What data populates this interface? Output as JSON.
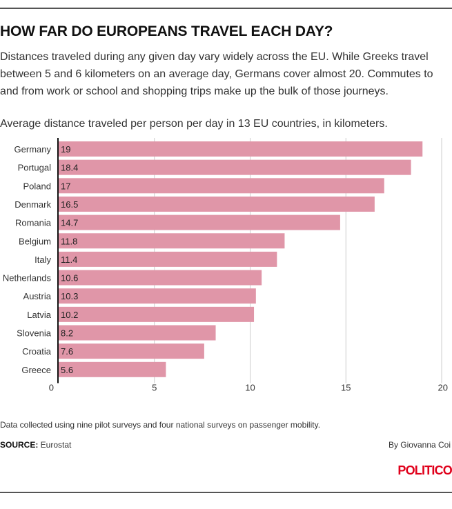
{
  "header": {
    "title": "HOW FAR DO EUROPEANS TRAVEL EACH DAY?",
    "intro": "Distances traveled during any given day vary widely across the EU. While Greeks travel between 5 and 6 kilometers on an average day, Germans cover almost 20. Commutes to and from work or school and shopping trips make up the bulk of those journeys.",
    "subtitle": "Average distance traveled per person per day in 13 EU countries, in kilometers."
  },
  "chart_data": {
    "type": "bar",
    "orientation": "horizontal",
    "categories": [
      "Germany",
      "Portugal",
      "Poland",
      "Denmark",
      "Romania",
      "Belgium",
      "Italy",
      "Netherlands",
      "Austria",
      "Latvia",
      "Slovenia",
      "Croatia",
      "Greece"
    ],
    "values": [
      19,
      18.4,
      17,
      16.5,
      14.7,
      11.8,
      11.4,
      10.6,
      10.3,
      10.2,
      8.2,
      7.6,
      5.6
    ],
    "data_labels": [
      "19",
      "18.4",
      "17",
      "16.5",
      "14.7",
      "11.8",
      "11.4",
      "10.6",
      "10.3",
      "10.2",
      "8.2",
      "7.6",
      "5.6"
    ],
    "x_ticks": [
      0,
      5,
      10,
      15,
      20
    ],
    "xlim": [
      0,
      20
    ],
    "grid": true,
    "bar_color": "#e096a8",
    "axis_color": "#111111",
    "grid_color": "#cccccc"
  },
  "footer": {
    "note": "Data collected using nine pilot surveys and four national surveys on passenger mobility.",
    "source_label": "SOURCE:",
    "source_value": " Eurostat",
    "byline": "By Giovanna Coi",
    "logo": "POLITICO"
  },
  "colors": {
    "brand": "#e0001b"
  }
}
